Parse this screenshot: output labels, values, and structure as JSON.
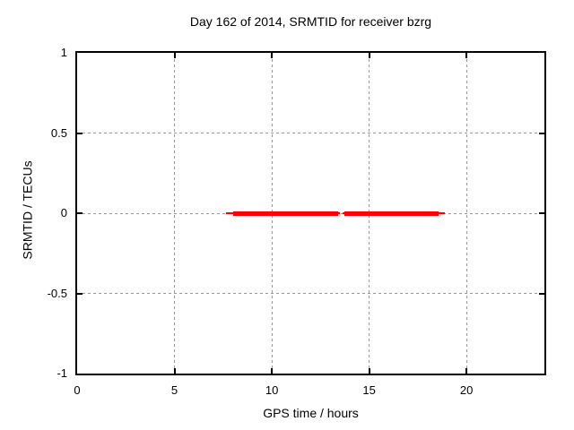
{
  "window": {
    "background": "#ffffff"
  },
  "chart_data": {
    "type": "line",
    "title": "Day 162 of 2014, SRMTID for receiver bzrg",
    "xlabel": "GPS time / hours",
    "ylabel": "SRMTID / TECUs",
    "xlim": [
      0,
      24
    ],
    "ylim": [
      -1,
      1
    ],
    "x_ticks": [
      0,
      5,
      10,
      15,
      20
    ],
    "x_tick_labels": [
      "0",
      "5",
      "10",
      "15",
      "20"
    ],
    "y_ticks": [
      -1,
      -0.5,
      0,
      0.5,
      1
    ],
    "y_tick_labels": [
      "-1",
      "-0.5",
      "0",
      "0.5",
      "1"
    ],
    "grid": true,
    "legend": "none",
    "series": [
      {
        "name": "SRMTID",
        "color": "#ff0000",
        "style": "thick horizontal line at constant value",
        "y_value": 0,
        "segments": [
          {
            "x_start": 8.0,
            "x_end": 13.4,
            "thin_lead_left_h": 0.35,
            "thin_lead_right_h": 0.12
          },
          {
            "x_start": 13.75,
            "x_end": 18.55,
            "thin_lead_left_h": 0.12,
            "thin_lead_right_h": 0.35
          }
        ]
      }
    ],
    "colors": {
      "series": "#ff0000",
      "grid": "#999999",
      "border": "#000000",
      "text": "#000000",
      "background": "#ffffff"
    }
  }
}
